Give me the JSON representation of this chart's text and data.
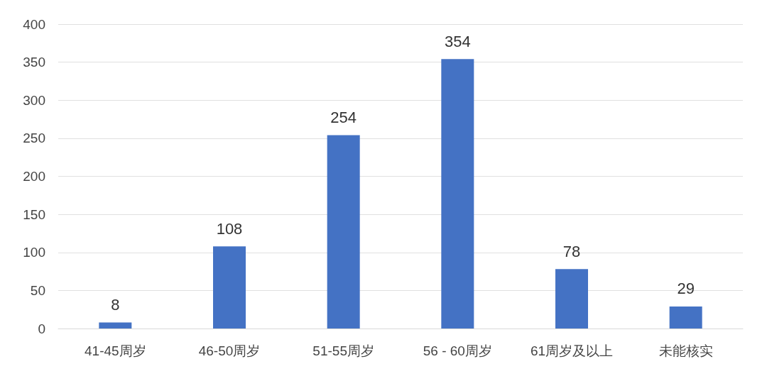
{
  "chart_data": {
    "type": "bar",
    "categories": [
      "41-45周岁",
      "46-50周岁",
      "51-55周岁",
      "56 - 60周岁",
      "61周岁及以上",
      "未能核实"
    ],
    "values": [
      8,
      108,
      254,
      354,
      78,
      29
    ],
    "color": "#4472c4",
    "ylim": [
      0,
      400
    ],
    "yticks": [
      0,
      50,
      100,
      150,
      200,
      250,
      300,
      350,
      400
    ],
    "grid": "y",
    "data_labels": true
  }
}
